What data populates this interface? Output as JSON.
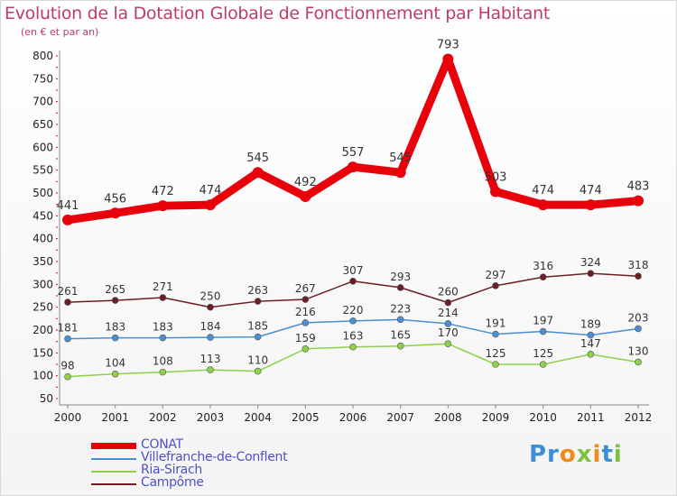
{
  "title": "Evolution de la Dotation Globale de Fonctionnement par Habitant",
  "subtitle": "(en € et par an)",
  "logo": {
    "text": "Proxiti",
    "colors": [
      "#3a8fd6",
      "#f08a1e",
      "#7cc242"
    ]
  },
  "chart_data": {
    "type": "line",
    "title": "Evolution de la Dotation Globale de Fonctionnement par Habitant",
    "subtitle": "(en € et par an)",
    "xlabel": "",
    "ylabel": "",
    "x": [
      "2000",
      "2001",
      "2002",
      "2003",
      "2004",
      "2005",
      "2006",
      "2007",
      "2008",
      "2009",
      "2010",
      "2011",
      "2012"
    ],
    "ylim": [
      50,
      800
    ],
    "yticks": [
      50,
      100,
      150,
      200,
      250,
      300,
      350,
      400,
      450,
      500,
      550,
      600,
      650,
      700,
      750,
      800
    ],
    "grid": false,
    "legend_position": "bottom-left",
    "series": [
      {
        "name": "CONAT",
        "color": "#e8000b",
        "emphasis": true,
        "values": [
          441,
          456,
          472,
          474,
          545,
          492,
          557,
          545,
          793,
          503,
          474,
          474,
          483
        ]
      },
      {
        "name": "Villefranche-de-Conflent",
        "color": "#4a8fd4",
        "values": [
          181,
          183,
          183,
          184,
          185,
          216,
          220,
          223,
          214,
          191,
          197,
          189,
          203
        ]
      },
      {
        "name": "Ria-Sirach",
        "color": "#8ed04a",
        "values": [
          98,
          104,
          108,
          113,
          110,
          159,
          163,
          165,
          170,
          125,
          125,
          147,
          130
        ]
      },
      {
        "name": "Campôme",
        "color": "#6b1f24",
        "values": [
          261,
          265,
          271,
          250,
          263,
          267,
          307,
          293,
          260,
          297,
          316,
          324,
          318
        ]
      }
    ]
  }
}
